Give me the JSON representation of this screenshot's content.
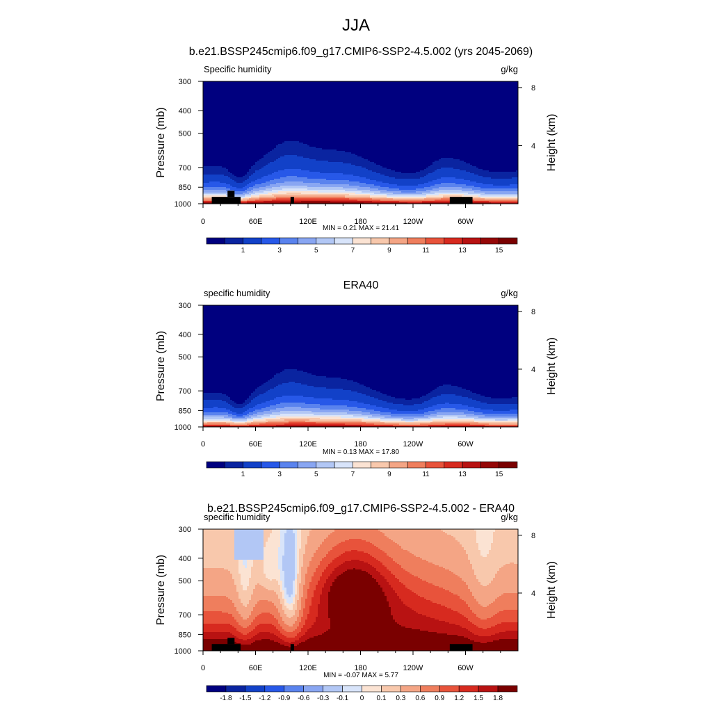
{
  "figure": {
    "title": "JJA"
  },
  "chart_data": [
    {
      "type": "heatmap",
      "title": "b.e21.BSSP245cmip6.f09_g17.CMIP6-SSP2-4.5.002 (yrs 2045-2069)",
      "left_label": "Specific humidity",
      "right_label": "g/kg",
      "ylabel": "Pressure (mb)",
      "ylabel_right": "Height (km)",
      "x_ticks": [
        "0",
        "60E",
        "120E",
        "180",
        "120W",
        "60W"
      ],
      "x_tick_values": [
        0,
        60,
        120,
        180,
        240,
        300
      ],
      "xlim": [
        0,
        360
      ],
      "y_ticks": [
        "300",
        "400",
        "500",
        "700",
        "850",
        "1000"
      ],
      "y_tick_values": [
        300,
        400,
        500,
        700,
        850,
        1000
      ],
      "ylim": [
        300,
        1000
      ],
      "y_scale": "log",
      "height_ticks": [
        "8",
        "4"
      ],
      "height_tick_values": [
        8,
        4
      ],
      "stats": "MIN =   0.21  MAX =  21.41",
      "colorbar": {
        "levels": [
          0.5,
          1,
          2,
          3,
          4,
          5,
          6,
          7,
          8,
          9,
          10,
          11,
          12,
          13,
          14,
          15
        ],
        "labels": [
          "1",
          "3",
          "5",
          "7",
          "9",
          "11",
          "13",
          "15"
        ],
        "label_values": [
          1,
          3,
          5,
          7,
          9,
          11,
          13,
          15
        ],
        "colors": [
          "#00007f",
          "#0a24a0",
          "#1241c8",
          "#2758e8",
          "#5a83ee",
          "#89a6f2",
          "#b2c7f5",
          "#d8e4fa",
          "#fbe3d3",
          "#f8c8ac",
          "#f4a585",
          "#ef7e5d",
          "#e8533b",
          "#d72a1f",
          "#b81212",
          "#950707",
          "#7a0000"
        ]
      },
      "field": "model"
    },
    {
      "type": "heatmap",
      "title": "ERA40",
      "left_label": "specific humidity",
      "right_label": "g/kg",
      "ylabel": "Pressure (mb)",
      "ylabel_right": "Height (km)",
      "x_ticks": [
        "0",
        "60E",
        "120E",
        "180",
        "120W",
        "60W"
      ],
      "x_tick_values": [
        0,
        60,
        120,
        180,
        240,
        300
      ],
      "xlim": [
        0,
        360
      ],
      "y_ticks": [
        "300",
        "400",
        "500",
        "700",
        "850",
        "1000"
      ],
      "y_tick_values": [
        300,
        400,
        500,
        700,
        850,
        1000
      ],
      "ylim": [
        300,
        1000
      ],
      "y_scale": "log",
      "height_ticks": [
        "8",
        "4"
      ],
      "height_tick_values": [
        8,
        4
      ],
      "stats": "MIN =   0.13  MAX =  17.80",
      "colorbar": {
        "levels": [
          0.5,
          1,
          2,
          3,
          4,
          5,
          6,
          7,
          8,
          9,
          10,
          11,
          12,
          13,
          14,
          15
        ],
        "labels": [
          "1",
          "3",
          "5",
          "7",
          "9",
          "11",
          "13",
          "15"
        ],
        "label_values": [
          1,
          3,
          5,
          7,
          9,
          11,
          13,
          15
        ],
        "colors": [
          "#00007f",
          "#0a24a0",
          "#1241c8",
          "#2758e8",
          "#5a83ee",
          "#89a6f2",
          "#b2c7f5",
          "#d8e4fa",
          "#fbe3d3",
          "#f8c8ac",
          "#f4a585",
          "#ef7e5d",
          "#e8533b",
          "#d72a1f",
          "#b81212",
          "#950707",
          "#7a0000"
        ]
      },
      "field": "obs"
    },
    {
      "type": "heatmap",
      "title": "b.e21.BSSP245cmip6.f09_g17.CMIP6-SSP2-4.5.002 - ERA40",
      "left_label": "specific humidity",
      "right_label": "g/kg",
      "ylabel": "Pressure (mb)",
      "ylabel_right": "Height (km)",
      "x_ticks": [
        "0",
        "60E",
        "120E",
        "180",
        "120W",
        "60W"
      ],
      "x_tick_values": [
        0,
        60,
        120,
        180,
        240,
        300
      ],
      "xlim": [
        0,
        360
      ],
      "y_ticks": [
        "300",
        "400",
        "500",
        "700",
        "850",
        "1000"
      ],
      "y_tick_values": [
        300,
        400,
        500,
        700,
        850,
        1000
      ],
      "ylim": [
        300,
        1000
      ],
      "y_scale": "log",
      "height_ticks": [
        "8",
        "4"
      ],
      "height_tick_values": [
        8,
        4
      ],
      "stats": "MIN =  -0.07  MAX =    5.77",
      "colorbar": {
        "levels": [
          -1.8,
          -1.5,
          -1.2,
          -0.9,
          -0.6,
          -0.3,
          -0.1,
          0,
          0.1,
          0.3,
          0.6,
          0.9,
          1.2,
          1.5,
          1.8
        ],
        "labels": [
          "-1.8",
          "-1.5",
          "-1.2",
          "-0.9",
          "-0.6",
          "-0.3",
          "-0.1",
          "0",
          "0.1",
          "0.3",
          "0.6",
          "0.9",
          "1.2",
          "1.5",
          "1.8"
        ],
        "label_values": [
          -1.8,
          -1.5,
          -1.2,
          -0.9,
          -0.6,
          -0.3,
          -0.1,
          0,
          0.1,
          0.3,
          0.6,
          0.9,
          1.2,
          1.5,
          1.8
        ],
        "colors": [
          "#00007f",
          "#0a24a0",
          "#1241c8",
          "#2758e8",
          "#5a83ee",
          "#89a6f2",
          "#b2c7f5",
          "#d8e4fa",
          "#fbe3d3",
          "#f8c8ac",
          "#f4a585",
          "#ef7e5d",
          "#e8533b",
          "#d72a1f",
          "#b81212",
          "#7a0000"
        ]
      },
      "field": "diff"
    }
  ]
}
